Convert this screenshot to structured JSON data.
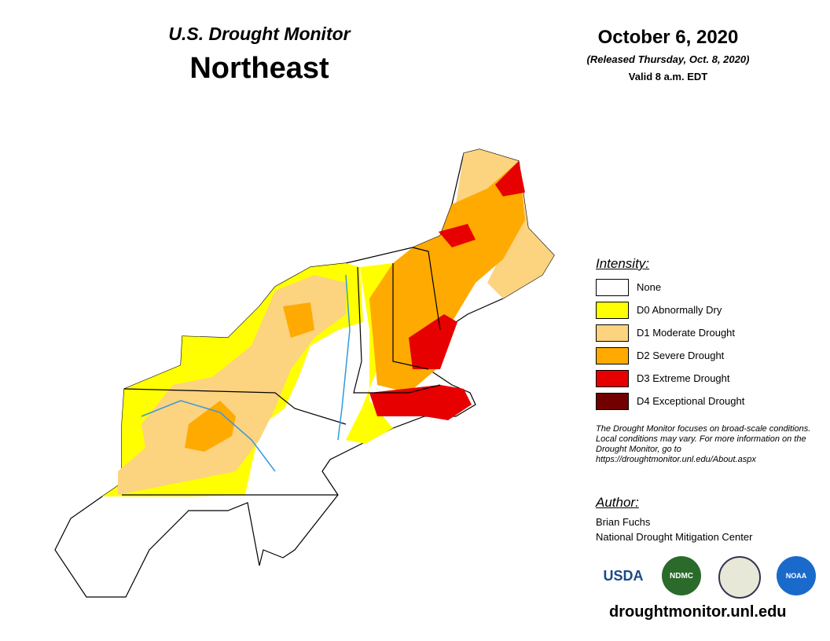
{
  "header": {
    "program": "U.S. Drought Monitor",
    "region": "Northeast",
    "date": "October 6, 2020",
    "released": "(Released Thursday, Oct. 8, 2020)",
    "valid": "Valid 8 a.m. EDT"
  },
  "legend": {
    "title": "Intensity:",
    "items": [
      {
        "label": "None",
        "color": "#ffffff"
      },
      {
        "label": "D0 Abnormally Dry",
        "color": "#ffff00"
      },
      {
        "label": "D1 Moderate Drought",
        "color": "#fcd37f"
      },
      {
        "label": "D2 Severe Drought",
        "color": "#ffaa00"
      },
      {
        "label": "D3 Extreme Drought",
        "color": "#e60000"
      },
      {
        "label": "D4 Exceptional Drought",
        "color": "#730000"
      }
    ]
  },
  "note": "The Drought Monitor focuses on broad-scale conditions. Local conditions may vary. For more information on the Drought Monitor, go to https://droughtmonitor.unl.edu/About.aspx",
  "author": {
    "title": "Author:",
    "name": "Brian Fuchs",
    "org": "National Drought Mitigation Center"
  },
  "logos": [
    "USDA",
    "NDMC",
    "NOAA"
  ],
  "url": "droughtmonitor.unl.edu"
}
